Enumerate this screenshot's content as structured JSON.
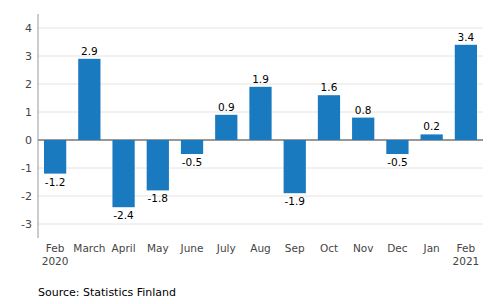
{
  "chart_data": {
    "type": "bar",
    "categories": [
      "Feb\n2020",
      "March",
      "April",
      "May",
      "June",
      "July",
      "Aug",
      "Sep",
      "Oct",
      "Nov",
      "Dec",
      "Jan",
      "Feb\n2021"
    ],
    "values": [
      -1.2,
      2.9,
      -2.4,
      -1.8,
      -0.5,
      0.9,
      1.9,
      -1.9,
      1.6,
      0.8,
      -0.5,
      0.2,
      3.4
    ],
    "color": "#1a7abf",
    "ylim": [
      -3.5,
      4.5
    ],
    "yticks": [
      -3,
      -2,
      -1,
      0,
      1,
      2,
      3,
      4
    ],
    "grid": true,
    "data_labels": true,
    "annotations": [
      "Source: Statistics Finland"
    ]
  }
}
